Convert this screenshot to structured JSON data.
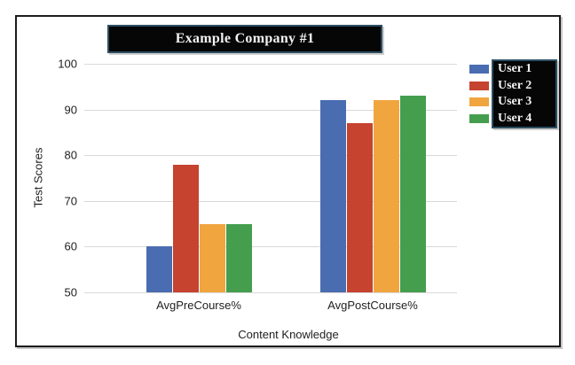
{
  "chart_data": {
    "type": "bar",
    "title": "Example Company #1",
    "xlabel": "Content Knowledge",
    "ylabel": "Test Scores",
    "categories": [
      "AvgPreCourse%",
      "AvgPostCourse%"
    ],
    "series": [
      {
        "name": "User 1",
        "color": "#4a6cb0",
        "values": [
          60,
          92
        ]
      },
      {
        "name": "User 2",
        "color": "#c5432f",
        "values": [
          78,
          87
        ]
      },
      {
        "name": "User 3",
        "color": "#f0a53f",
        "values": [
          65,
          92
        ]
      },
      {
        "name": "User 4",
        "color": "#449e4e",
        "values": [
          65,
          93
        ]
      }
    ],
    "ylim": [
      50,
      100
    ],
    "yticks": [
      50,
      60,
      70,
      80,
      90,
      100
    ],
    "grid": true,
    "legend_position": "right",
    "colors": {
      "grid": "#d9d9d9",
      "box_fill": "#060606",
      "box_border": "#2d4f63",
      "box_text": "#f2f2f2",
      "axis_text": "#1f1f1f"
    }
  }
}
